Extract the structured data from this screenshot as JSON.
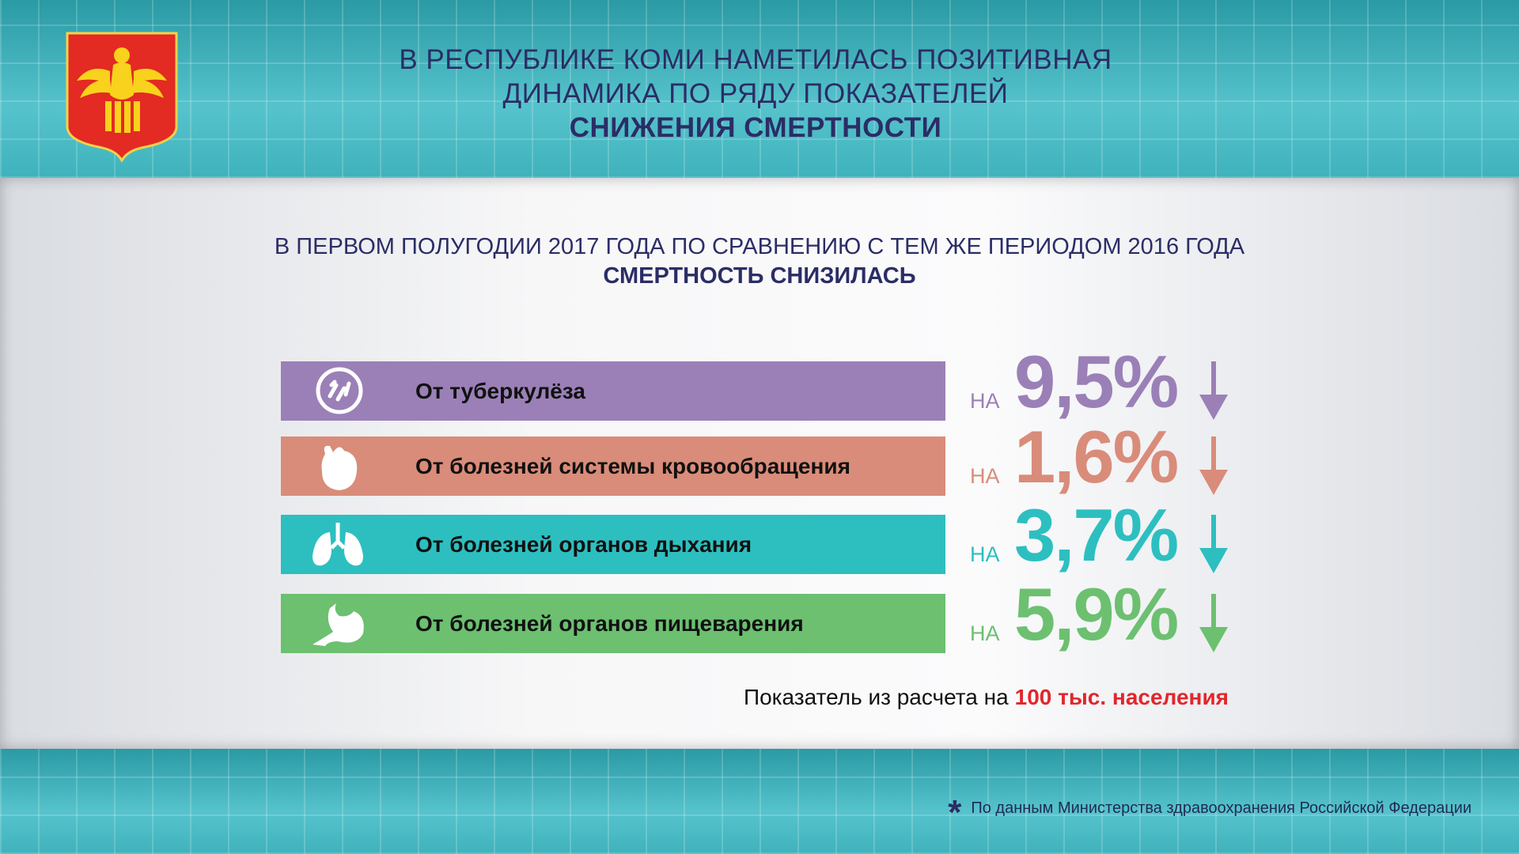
{
  "header": {
    "title_lines": [
      "В РЕСПУБЛИКЕ КОМИ НАМЕТИЛАСЬ ПОЗИТИВНАЯ",
      "ДИНАМИКА ПО РЯДУ ПОКАЗАТЕЛЕЙ"
    ],
    "title_emphasis": "СНИЖЕНИЯ СМЕРТНОСТИ"
  },
  "subtitle": {
    "text": "В ПЕРВОМ ПОЛУГОДИИ 2017 ГОДА ПО СРАВНЕНИЮ С ТЕМ ЖЕ ПЕРИОДОМ 2016 ГОДА",
    "emphasis": "СМЕРТНОСТЬ СНИЗИЛАСЬ"
  },
  "rows": [
    {
      "label": "От туберкулёза",
      "prefix": "НА",
      "value": "9,5%",
      "color": "#9b80b7"
    },
    {
      "label": "От болезней системы кровообращения",
      "prefix": "НА",
      "value": "1,6%",
      "color": "#d98c79"
    },
    {
      "label": "От болезней органов дыхания",
      "prefix": "НА",
      "value": "3,7%",
      "color": "#2dbfc0"
    },
    {
      "label": "От болезней органов пищеварения",
      "prefix": "НА",
      "value": "5,9%",
      "color": "#6cc070"
    }
  ],
  "note": {
    "text": "Показатель из расчета на",
    "emphasis": "100 тыс. населения"
  },
  "source": {
    "marker": "*",
    "text": "По данным Министерства здравоохранения Российской Федерации"
  }
}
